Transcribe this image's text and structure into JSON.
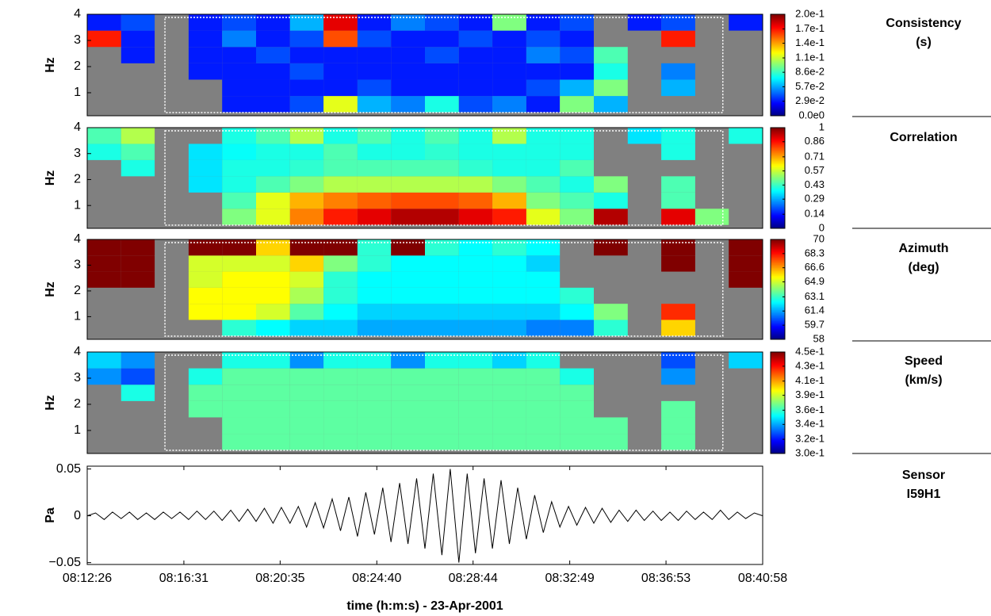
{
  "chart_data": [
    {
      "type": "heatmap",
      "ylabel": "Hz",
      "label": [
        "Consistency",
        "(s)"
      ],
      "colormap": "jet",
      "xlim": [
        0,
        1712
      ],
      "ylim": [
        0.12,
        4
      ],
      "yticks": [
        1,
        2,
        3,
        4
      ],
      "window": [
        197,
        1611
      ],
      "clim": [
        0,
        0.2
      ],
      "cticks": [
        {
          "value": 0,
          "label": "0.0e0"
        },
        {
          "value": 0.0286,
          "label": "2.9e-2"
        },
        {
          "value": 0.0571,
          "label": "5.7e-2"
        },
        {
          "value": 0.0857,
          "label": "8.6e-2"
        },
        {
          "value": 0.114,
          "label": "1.1e-1"
        },
        {
          "value": 0.143,
          "label": "1.4e-1"
        },
        {
          "value": 0.171,
          "label": "1.7e-1"
        },
        {
          "value": 0.2,
          "label": "2.0e-1"
        }
      ],
      "xbins": [
        0,
        86,
        171,
        257,
        342,
        428,
        514,
        599,
        685,
        770,
        856,
        942,
        1027,
        1113,
        1198,
        1284,
        1370,
        1455,
        1541,
        1626,
        1712
      ],
      "ybins": [
        0.25,
        0.875,
        1.5,
        2.125,
        2.75,
        3.375,
        4
      ],
      "values": [
        [
          null,
          null,
          null,
          null,
          0.03,
          0.03,
          0.04,
          0.12,
          0.06,
          0.05,
          0.08,
          0.04,
          0.05,
          0.03,
          0.1,
          0.06,
          null,
          null,
          null,
          null
        ],
        [
          null,
          null,
          null,
          null,
          0.03,
          0.03,
          0.03,
          0.03,
          0.04,
          0.03,
          0.03,
          0.03,
          0.03,
          0.04,
          0.06,
          0.1,
          null,
          0.06,
          null,
          null
        ],
        [
          null,
          null,
          null,
          0.03,
          0.03,
          0.03,
          0.04,
          0.03,
          0.03,
          0.03,
          0.03,
          0.03,
          0.03,
          0.03,
          0.03,
          0.08,
          null,
          0.05,
          null,
          null
        ],
        [
          null,
          0.03,
          null,
          0.03,
          0.03,
          0.04,
          0.03,
          0.03,
          0.03,
          0.03,
          0.04,
          0.03,
          0.03,
          0.05,
          0.04,
          0.09,
          null,
          null,
          null,
          null
        ],
        [
          0.17,
          0.03,
          null,
          0.03,
          0.05,
          0.03,
          0.04,
          0.16,
          0.04,
          0.03,
          0.03,
          0.04,
          0.03,
          0.04,
          0.03,
          null,
          null,
          0.17,
          null,
          null
        ],
        [
          0.03,
          0.04,
          null,
          0.03,
          0.04,
          0.03,
          0.06,
          0.18,
          0.03,
          0.05,
          0.04,
          0.03,
          0.1,
          0.03,
          0.04,
          null,
          0.03,
          0.04,
          null,
          0.03
        ]
      ]
    },
    {
      "type": "heatmap",
      "ylabel": "Hz",
      "label": [
        "Correlation"
      ],
      "colormap": "jet",
      "xlim": [
        0,
        1712
      ],
      "ylim": [
        0.12,
        4
      ],
      "yticks": [
        1,
        2,
        3,
        4
      ],
      "window": [
        197,
        1611
      ],
      "clim": [
        0,
        1
      ],
      "cticks": [
        0,
        0.14,
        0.29,
        0.43,
        0.57,
        0.71,
        0.86,
        1
      ],
      "xbins": [
        0,
        86,
        171,
        257,
        342,
        428,
        514,
        599,
        685,
        770,
        856,
        942,
        1027,
        1113,
        1198,
        1284,
        1370,
        1455,
        1541,
        1626,
        1712
      ],
      "ybins": [
        0.25,
        0.875,
        1.5,
        2.125,
        2.75,
        3.375,
        4
      ],
      "values": [
        [
          null,
          null,
          null,
          null,
          0.5,
          0.6,
          0.75,
          0.85,
          0.9,
          0.95,
          0.95,
          0.9,
          0.85,
          0.6,
          0.5,
          0.95,
          null,
          0.9,
          0.5,
          null
        ],
        [
          null,
          null,
          null,
          null,
          0.45,
          0.6,
          0.7,
          0.75,
          0.78,
          0.8,
          0.8,
          0.78,
          0.7,
          0.5,
          0.45,
          0.4,
          null,
          0.45,
          null,
          null
        ],
        [
          null,
          null,
          null,
          0.35,
          0.4,
          0.45,
          0.5,
          0.55,
          0.55,
          0.55,
          0.55,
          0.55,
          0.5,
          0.45,
          0.4,
          0.5,
          null,
          0.45,
          null,
          null
        ],
        [
          null,
          0.4,
          null,
          0.35,
          0.4,
          0.4,
          0.42,
          0.45,
          0.45,
          0.45,
          0.45,
          0.42,
          0.4,
          0.4,
          0.45,
          null,
          null,
          null,
          null,
          null
        ],
        [
          0.4,
          0.45,
          null,
          0.35,
          0.38,
          0.4,
          0.4,
          0.45,
          0.4,
          0.4,
          0.42,
          0.4,
          0.4,
          0.4,
          0.4,
          null,
          null,
          0.4,
          null,
          null
        ],
        [
          0.45,
          0.55,
          null,
          null,
          0.4,
          0.45,
          0.55,
          0.4,
          0.45,
          0.4,
          0.45,
          0.4,
          0.55,
          0.4,
          0.4,
          null,
          0.35,
          0.4,
          null,
          0.4
        ]
      ]
    },
    {
      "type": "heatmap",
      "ylabel": "Hz",
      "label": [
        "Azimuth",
        "(deg)"
      ],
      "colormap": "jet",
      "xlim": [
        0,
        1712
      ],
      "ylim": [
        0.12,
        4
      ],
      "yticks": [
        1,
        2,
        3,
        4
      ],
      "window": [
        197,
        1611
      ],
      "clim": [
        58,
        70
      ],
      "cticks": [
        58,
        59.7,
        61.4,
        63.1,
        64.9,
        66.6,
        68.3,
        70
      ],
      "xbins": [
        0,
        86,
        171,
        257,
        342,
        428,
        514,
        599,
        685,
        770,
        856,
        942,
        1027,
        1113,
        1198,
        1284,
        1370,
        1455,
        1541,
        1626,
        1712
      ],
      "ybins": [
        0.25,
        0.875,
        1.5,
        2.125,
        2.75,
        3.375,
        4
      ],
      "values": [
        [
          null,
          null,
          null,
          null,
          63,
          62.5,
          62,
          62,
          61.5,
          61.5,
          61.5,
          61.5,
          61.5,
          61,
          61,
          63,
          null,
          66,
          null,
          null
        ],
        [
          null,
          null,
          null,
          65.5,
          65.5,
          65,
          63.5,
          62.5,
          62,
          62,
          62,
          62,
          62,
          62,
          62.5,
          64,
          null,
          68,
          null,
          null
        ],
        [
          null,
          null,
          null,
          65.5,
          65.5,
          65.5,
          64.5,
          63,
          62.5,
          62.5,
          62.5,
          62.5,
          62.5,
          62.5,
          63,
          null,
          null,
          null,
          null,
          null
        ],
        [
          70,
          70,
          null,
          65,
          65.5,
          65.5,
          65,
          63,
          62.5,
          62.5,
          62.5,
          62.5,
          62.5,
          62.5,
          null,
          null,
          null,
          null,
          null,
          70
        ],
        [
          70,
          70,
          null,
          65,
          65,
          65,
          66,
          64,
          63,
          62.5,
          62.5,
          62.5,
          62.5,
          62,
          null,
          null,
          null,
          70,
          null,
          70
        ],
        [
          70,
          70,
          null,
          70,
          70,
          66,
          70,
          70,
          63,
          70,
          63,
          62.5,
          63,
          62.5,
          null,
          70,
          null,
          70,
          null,
          70
        ]
      ]
    },
    {
      "type": "heatmap",
      "ylabel": "Hz",
      "label": [
        "Speed",
        "(km/s)"
      ],
      "colormap": "jet",
      "xlim": [
        0,
        1712
      ],
      "ylim": [
        0.12,
        4
      ],
      "yticks": [
        1,
        2,
        3,
        4
      ],
      "window": [
        197,
        1611
      ],
      "clim": [
        0.3,
        0.45
      ],
      "cticks": [
        {
          "value": 0.3,
          "label": "3.0e-1"
        },
        {
          "value": 0.321,
          "label": "3.2e-1"
        },
        {
          "value": 0.343,
          "label": "3.4e-1"
        },
        {
          "value": 0.364,
          "label": "3.6e-1"
        },
        {
          "value": 0.386,
          "label": "3.9e-1"
        },
        {
          "value": 0.407,
          "label": "4.1e-1"
        },
        {
          "value": 0.429,
          "label": "4.3e-1"
        },
        {
          "value": 0.45,
          "label": "4.5e-1"
        }
      ],
      "xbins": [
        0,
        86,
        171,
        257,
        342,
        428,
        514,
        599,
        685,
        770,
        856,
        942,
        1027,
        1113,
        1198,
        1284,
        1370,
        1455,
        1541,
        1626,
        1712
      ],
      "ybins": [
        0.25,
        0.875,
        1.5,
        2.125,
        2.75,
        3.375,
        4
      ],
      "values": [
        [
          null,
          null,
          null,
          null,
          0.37,
          0.37,
          0.37,
          0.37,
          0.37,
          0.37,
          0.37,
          0.37,
          0.37,
          0.37,
          0.37,
          0.37,
          null,
          0.37,
          null,
          null
        ],
        [
          null,
          null,
          null,
          null,
          0.37,
          0.37,
          0.37,
          0.37,
          0.37,
          0.37,
          0.37,
          0.37,
          0.37,
          0.37,
          0.37,
          0.37,
          null,
          0.37,
          null,
          null
        ],
        [
          null,
          null,
          null,
          0.37,
          0.37,
          0.37,
          0.37,
          0.37,
          0.37,
          0.37,
          0.37,
          0.37,
          0.37,
          0.37,
          0.37,
          null,
          null,
          0.37,
          null,
          null
        ],
        [
          null,
          0.36,
          null,
          0.37,
          0.37,
          0.37,
          0.37,
          0.37,
          0.37,
          0.37,
          0.37,
          0.37,
          0.37,
          0.37,
          0.37,
          null,
          null,
          null,
          null,
          null
        ],
        [
          0.34,
          0.33,
          null,
          0.36,
          0.37,
          0.37,
          0.37,
          0.37,
          0.37,
          0.37,
          0.37,
          0.37,
          0.37,
          0.37,
          0.36,
          null,
          null,
          0.34,
          null,
          null
        ],
        [
          0.35,
          0.34,
          null,
          null,
          0.36,
          0.36,
          0.34,
          0.36,
          0.36,
          0.34,
          0.36,
          0.36,
          0.35,
          0.36,
          null,
          null,
          null,
          0.33,
          null,
          0.35
        ]
      ]
    },
    {
      "type": "line",
      "ylabel": "Pa",
      "label": [
        "Sensor",
        "I59H1"
      ],
      "xlabel": "time (h:m:s) - 23-Apr-2001",
      "color": "#000000",
      "xlim": [
        0,
        1712
      ],
      "ylim": [
        -0.052,
        0.053
      ],
      "yticks": [
        {
          "value": -0.05,
          "label": "−0.05"
        },
        0,
        0.05
      ],
      "xticks": [
        {
          "value": 0,
          "label": "08:12:26"
        },
        {
          "value": 245,
          "label": "08:16:31"
        },
        {
          "value": 489,
          "label": "08:20:35"
        },
        {
          "value": 734,
          "label": "08:24:40"
        },
        {
          "value": 978,
          "label": "08:28:44"
        },
        {
          "value": 1223,
          "label": "08:32:49"
        },
        {
          "value": 1467,
          "label": "08:36:53"
        },
        {
          "value": 1712,
          "label": "08:40:58"
        }
      ],
      "x": [
        0,
        21,
        43,
        64,
        86,
        107,
        128,
        150,
        171,
        193,
        214,
        235,
        257,
        278,
        300,
        321,
        342,
        364,
        385,
        407,
        428,
        449,
        471,
        492,
        514,
        535,
        556,
        578,
        599,
        621,
        642,
        663,
        685,
        706,
        728,
        749,
        770,
        792,
        813,
        835,
        856,
        877,
        899,
        920,
        942,
        963,
        984,
        1006,
        1027,
        1049,
        1070,
        1091,
        1113,
        1134,
        1156,
        1177,
        1198,
        1220,
        1241,
        1263,
        1284,
        1305,
        1327,
        1348,
        1370,
        1391,
        1412,
        1434,
        1455,
        1477,
        1498,
        1519,
        1541,
        1562,
        1584,
        1605,
        1626,
        1648,
        1669,
        1691,
        1712
      ],
      "values": [
        0,
        0.003,
        -0.004,
        0.004,
        -0.003,
        0.004,
        -0.004,
        0.003,
        -0.004,
        0.004,
        -0.003,
        0.004,
        -0.004,
        0.005,
        -0.004,
        0.005,
        -0.005,
        0.006,
        -0.006,
        0.007,
        -0.006,
        0.008,
        -0.008,
        0.009,
        -0.008,
        0.01,
        -0.012,
        0.014,
        -0.013,
        0.018,
        -0.016,
        0.02,
        -0.022,
        0.025,
        -0.02,
        0.03,
        -0.028,
        0.035,
        -0.03,
        0.04,
        -0.035,
        0.045,
        -0.042,
        0.05,
        -0.05,
        0.045,
        -0.04,
        0.04,
        -0.035,
        0.038,
        -0.03,
        0.03,
        -0.025,
        0.022,
        -0.018,
        0.015,
        -0.012,
        0.01,
        -0.01,
        0.009,
        -0.008,
        0.008,
        -0.007,
        0.006,
        -0.006,
        0.006,
        -0.005,
        0.005,
        -0.005,
        0.004,
        -0.005,
        0.005,
        -0.004,
        0.004,
        -0.004,
        0.006,
        -0.004,
        0.004,
        -0.003,
        0.003,
        0
      ]
    }
  ]
}
